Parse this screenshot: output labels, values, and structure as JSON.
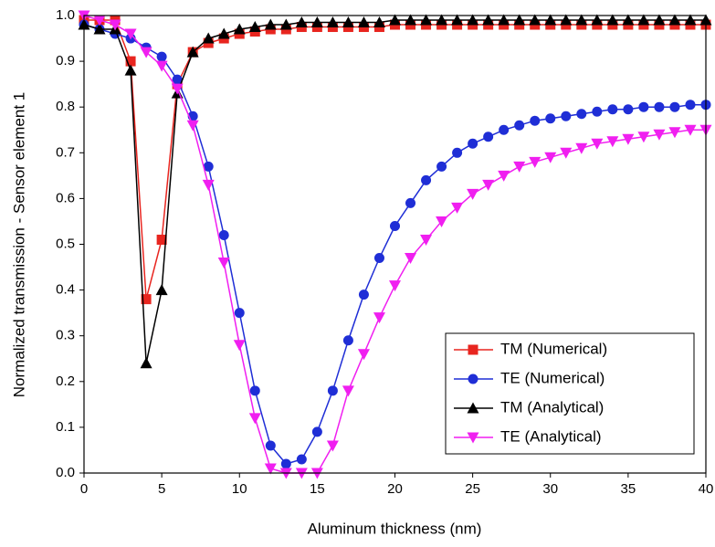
{
  "chart_data": {
    "type": "line",
    "x_label": "Aluminum thickness (nm)",
    "y_label": "Normalized transmission - Sensor element 1",
    "x": [
      0,
      1,
      2,
      3,
      4,
      5,
      6,
      7,
      8,
      9,
      10,
      11,
      12,
      13,
      14,
      15,
      16,
      17,
      18,
      19,
      20,
      21,
      22,
      23,
      24,
      25,
      26,
      27,
      28,
      29,
      30,
      31,
      32,
      33,
      34,
      35,
      36,
      37,
      38,
      39,
      40
    ],
    "series": [
      {
        "name": "TM (Numerical)",
        "color": "#e8251f",
        "marker": "square",
        "values": [
          0.99,
          0.99,
          0.99,
          0.9,
          0.38,
          0.51,
          0.85,
          0.92,
          0.94,
          0.95,
          0.96,
          0.965,
          0.97,
          0.97,
          0.975,
          0.975,
          0.975,
          0.975,
          0.975,
          0.975,
          0.98,
          0.98,
          0.98,
          0.98,
          0.98,
          0.98,
          0.98,
          0.98,
          0.98,
          0.98,
          0.98,
          0.98,
          0.98,
          0.98,
          0.98,
          0.98,
          0.98,
          0.98,
          0.98,
          0.98,
          0.98
        ]
      },
      {
        "name": "TE (Numerical)",
        "color": "#1f2ed6",
        "marker": "circle",
        "values": [
          0.98,
          0.97,
          0.96,
          0.95,
          0.93,
          0.91,
          0.86,
          0.78,
          0.67,
          0.52,
          0.35,
          0.18,
          0.06,
          0.02,
          0.03,
          0.09,
          0.18,
          0.29,
          0.39,
          0.47,
          0.54,
          0.59,
          0.64,
          0.67,
          0.7,
          0.72,
          0.735,
          0.75,
          0.76,
          0.77,
          0.775,
          0.78,
          0.785,
          0.79,
          0.795,
          0.795,
          0.8,
          0.8,
          0.8,
          0.805,
          0.805
        ]
      },
      {
        "name": "TM (Analytical)",
        "color": "#000000",
        "marker": "triangle-up",
        "values": [
          0.98,
          0.97,
          0.97,
          0.88,
          0.24,
          0.4,
          0.83,
          0.92,
          0.95,
          0.96,
          0.97,
          0.975,
          0.98,
          0.98,
          0.985,
          0.985,
          0.985,
          0.985,
          0.985,
          0.985,
          0.99,
          0.99,
          0.99,
          0.99,
          0.99,
          0.99,
          0.99,
          0.99,
          0.99,
          0.99,
          0.99,
          0.99,
          0.99,
          0.99,
          0.99,
          0.99,
          0.99,
          0.99,
          0.99,
          0.99,
          0.99
        ]
      },
      {
        "name": "TE (Analytical)",
        "color": "#f01ff0",
        "marker": "triangle-down",
        "values": [
          1.0,
          0.99,
          0.98,
          0.96,
          0.92,
          0.89,
          0.84,
          0.76,
          0.63,
          0.46,
          0.28,
          0.12,
          0.01,
          0.0,
          0.0,
          0.0,
          0.06,
          0.18,
          0.26,
          0.34,
          0.41,
          0.47,
          0.51,
          0.55,
          0.58,
          0.61,
          0.63,
          0.65,
          0.67,
          0.68,
          0.69,
          0.7,
          0.71,
          0.72,
          0.725,
          0.73,
          0.735,
          0.74,
          0.745,
          0.75,
          0.75
        ]
      }
    ],
    "xlim": [
      0,
      40
    ],
    "xticks": [
      0,
      5,
      10,
      15,
      20,
      25,
      30,
      35,
      40
    ],
    "ylim": [
      0,
      1
    ],
    "yticks": [
      {
        "value": 0,
        "label": "0.0"
      },
      0.1,
      0.2,
      0.3,
      0.4,
      0.5,
      0.6,
      0.7,
      0.8,
      0.9,
      {
        "value": 1,
        "label": "1.0"
      }
    ],
    "legend": "lower-right",
    "grid": false
  }
}
